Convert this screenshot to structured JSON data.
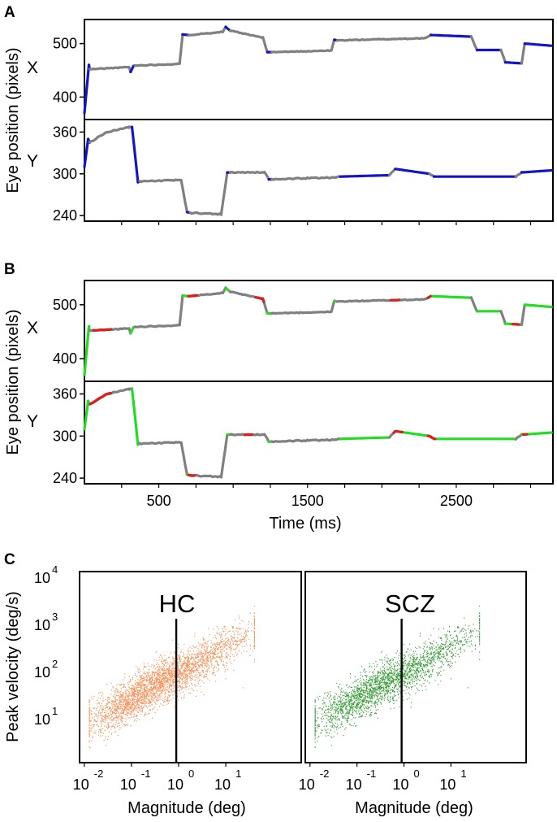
{
  "panel_letters": [
    "A",
    "B",
    "C"
  ],
  "colors": {
    "fixation": "#808080",
    "saccade_A": "#1414c8",
    "saccade_B": "#22dd22",
    "other_B": "#dd1c1c",
    "hc": "#f57f3c",
    "scz": "#128a12"
  },
  "chart_data": [
    {
      "id": "A",
      "type": "line",
      "title": "",
      "ylabel": "Eye position (pixels)",
      "xlim": [
        0,
        3150
      ],
      "subplots": [
        {
          "label": "X",
          "ylim": [
            358,
            545
          ],
          "yticks": [
            400,
            500
          ]
        },
        {
          "label": "Y",
          "ylim": [
            232,
            378
          ],
          "yticks": [
            240,
            300,
            360
          ]
        }
      ],
      "legend": {
        "fixation": "gray",
        "saccade": "blue"
      }
    },
    {
      "id": "B",
      "type": "line",
      "title": "",
      "ylabel": "Eye position (pixels)",
      "xlabel": "Time (ms)",
      "xlim": [
        0,
        3150
      ],
      "xticks": [
        500,
        1500,
        2500
      ],
      "subplots": [
        {
          "label": "X",
          "ylim": [
            358,
            545
          ],
          "yticks": [
            400,
            500
          ]
        },
        {
          "label": "Y",
          "ylim": [
            232,
            378
          ],
          "yticks": [
            240,
            300,
            360
          ]
        }
      ],
      "legend": {
        "fixation": "gray",
        "saccade": "green",
        "other": "red"
      }
    },
    {
      "id": "C",
      "type": "scatter",
      "ylabel": "Peak velocity (deg/s)",
      "xlabel": "Magnitude (deg)",
      "xscale": "log",
      "yscale": "log",
      "xlim": [
        -2.1,
        2.6
      ],
      "ylim": [
        0.05,
        4.1
      ],
      "xticks": [
        {
          "base": "10",
          "exp": "-2"
        },
        {
          "base": "10",
          "exp": "-1"
        },
        {
          "base": "10",
          "exp": "0"
        },
        {
          "base": "10",
          "exp": "1"
        }
      ],
      "yticks": [
        {
          "base": "10",
          "exp": "1"
        },
        {
          "base": "10",
          "exp": "2"
        },
        {
          "base": "10",
          "exp": "3"
        },
        {
          "base": "10",
          "exp": "4"
        }
      ],
      "threshold_magnitude_log10": -0.05,
      "groups": [
        {
          "name": "HC",
          "color_key": "hc",
          "fit_intercept": 1.95,
          "fit_slope": 0.55,
          "n_points": 3200
        },
        {
          "name": "SCZ",
          "color_key": "scz",
          "fit_intercept": 1.95,
          "fit_slope": 0.55,
          "n_points": 3200
        }
      ]
    }
  ]
}
